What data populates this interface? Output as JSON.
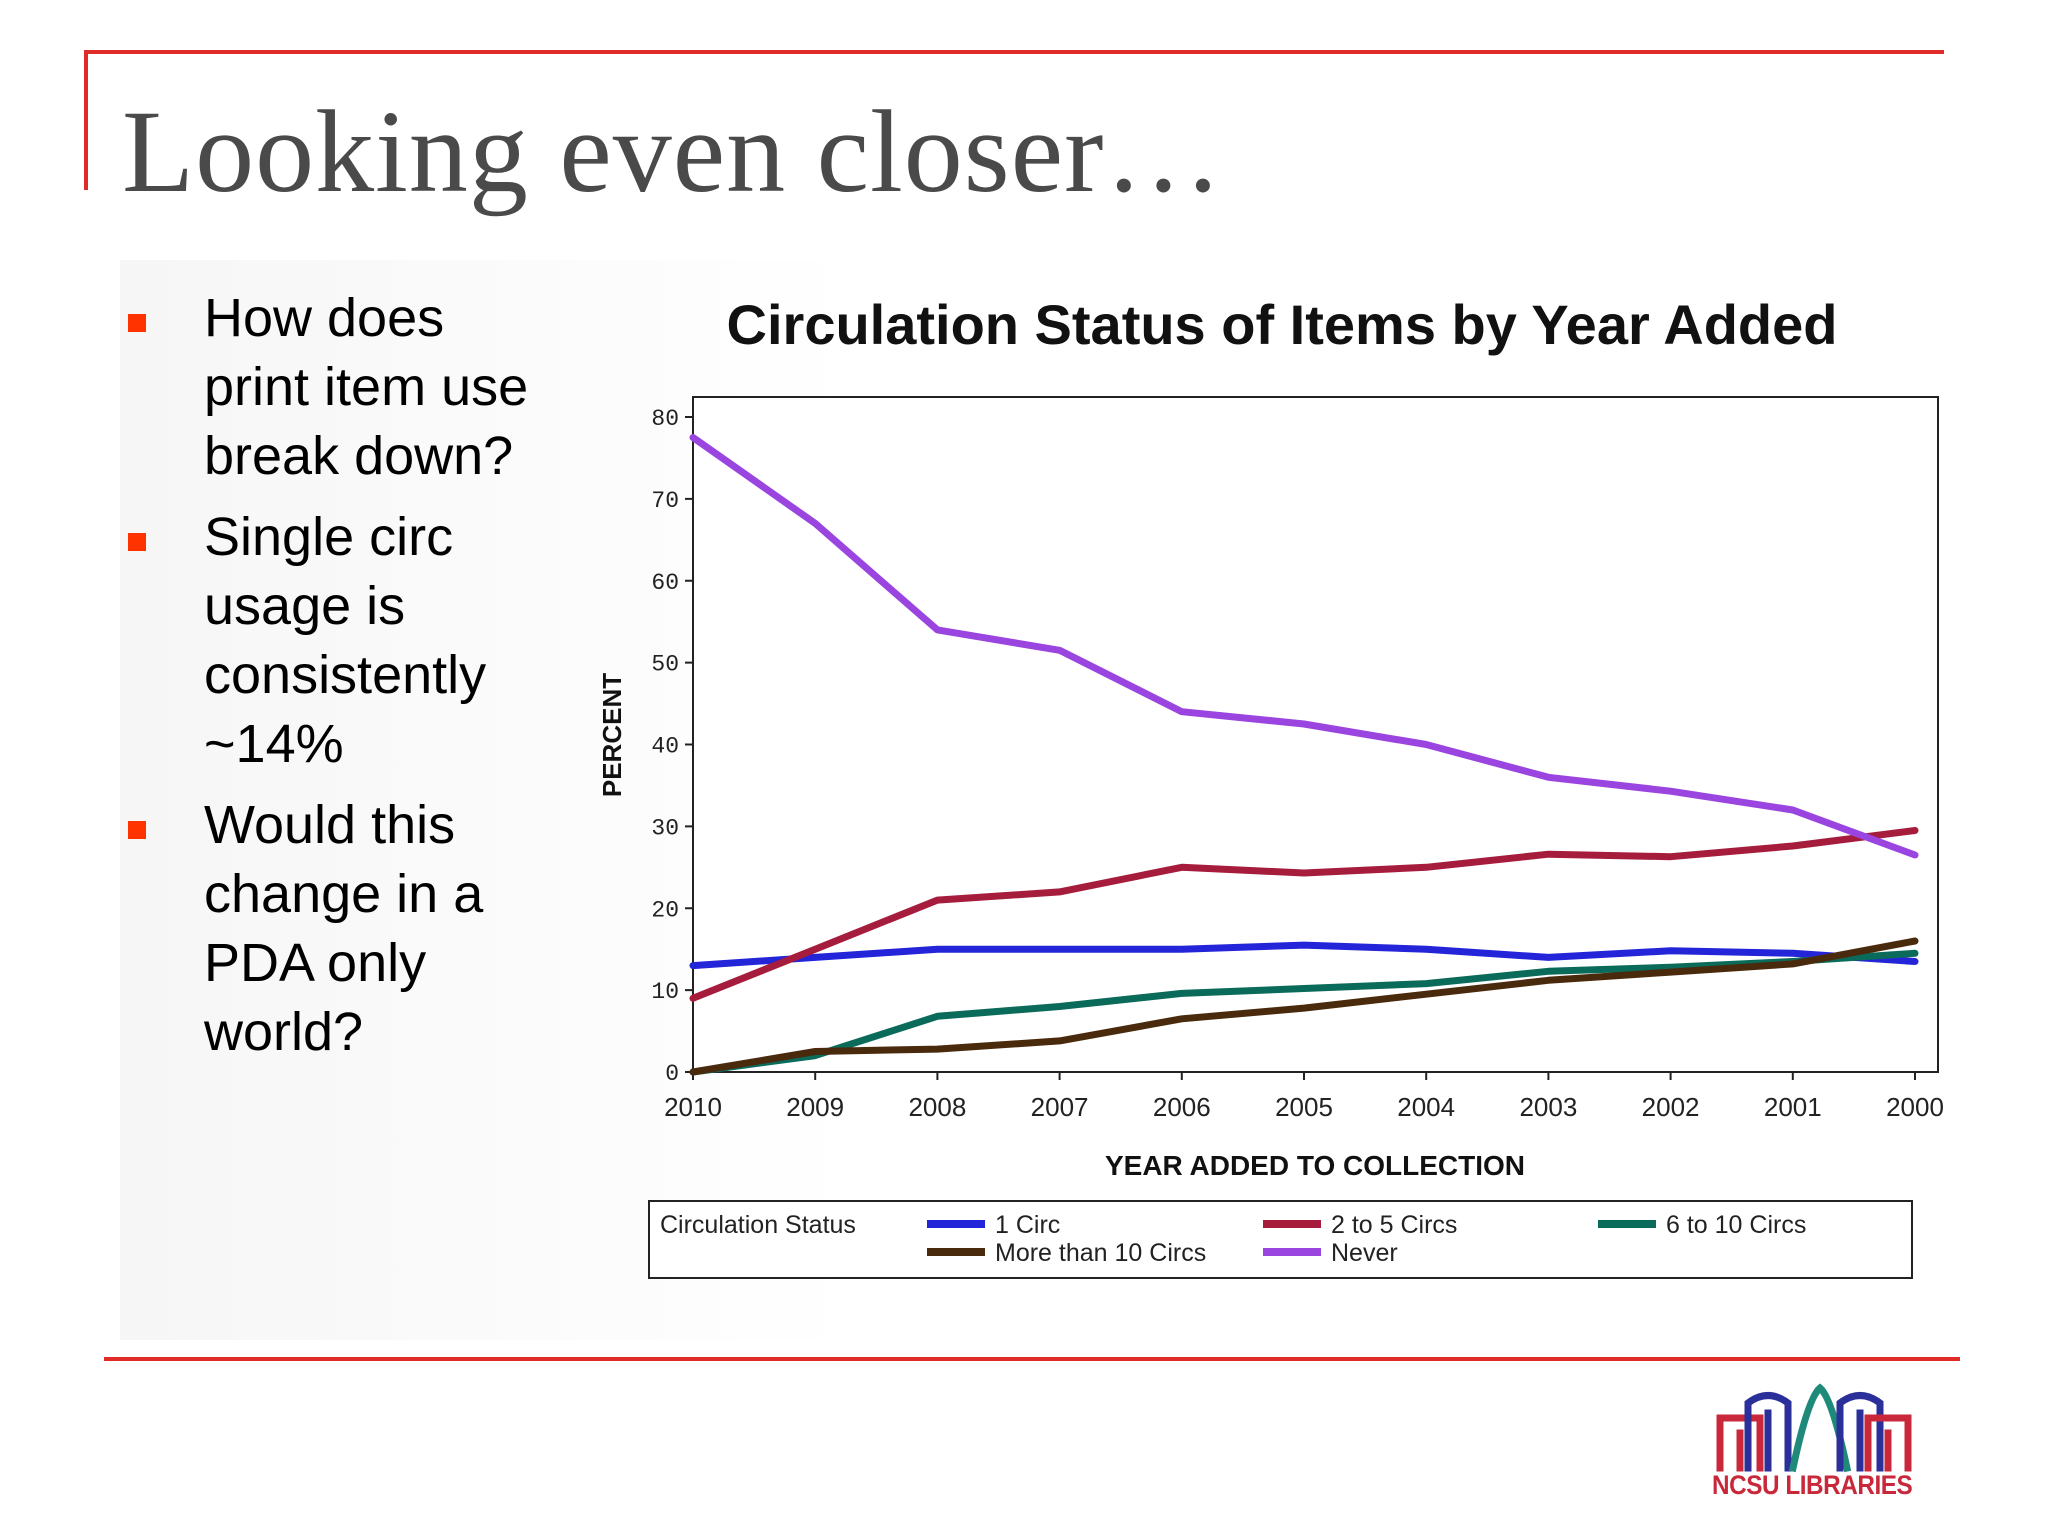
{
  "slide": {
    "title": "Looking even closer…",
    "bullets": [
      {
        "lines": [
          "How does",
          "print item use",
          "break down?"
        ]
      },
      {
        "lines": [
          "Single circ",
          "usage is",
          "consistently",
          "~14%"
        ]
      },
      {
        "lines": [
          "Would this",
          "change in a",
          "PDA only",
          "world?"
        ]
      }
    ],
    "accent_color": "#e02b2b",
    "bullet_color": "#ff3300"
  },
  "logo": {
    "text": "NCSU LIBRARIES",
    "colors": [
      "#c8283a",
      "#2a2f9a",
      "#1f8a7a"
    ]
  },
  "chart_data": {
    "type": "line",
    "title": "Circulation Status of Items by Year Added",
    "xlabel": "YEAR ADDED TO COLLECTION",
    "ylabel": "PERCENT",
    "categories": [
      "2010",
      "2009",
      "2008",
      "2007",
      "2006",
      "2005",
      "2004",
      "2003",
      "2002",
      "2001",
      "2000"
    ],
    "ylim": [
      0,
      80
    ],
    "yticks": [
      0,
      10,
      20,
      30,
      40,
      50,
      60,
      70,
      80
    ],
    "legend_title": "Circulation Status",
    "legend_position": "bottom",
    "series": [
      {
        "name": "1 Circ",
        "color": "#2424d8",
        "values": [
          13,
          14,
          15,
          15,
          15,
          15.5,
          15,
          14,
          14.8,
          14.5,
          13.5
        ]
      },
      {
        "name": "2 to 5 Circs",
        "color": "#a61c3c",
        "values": [
          9,
          15,
          21,
          22,
          25,
          24.3,
          25,
          26.6,
          26.3,
          27.6,
          29.5
        ]
      },
      {
        "name": "6 to 10 Circs",
        "color": "#0b6b5a",
        "values": [
          0,
          2,
          6.8,
          8,
          9.6,
          10.2,
          10.8,
          12.3,
          12.8,
          13.5,
          14.5
        ]
      },
      {
        "name": "More than 10 Circs",
        "color": "#4a2a0c",
        "values": [
          0,
          2.5,
          2.8,
          3.8,
          6.5,
          7.8,
          9.5,
          11.2,
          12.2,
          13.2,
          16
        ]
      },
      {
        "name": "Never",
        "color": "#9b45e0",
        "values": [
          77.5,
          67,
          54,
          51.5,
          44,
          42.5,
          40,
          36,
          34.3,
          32,
          26.5
        ]
      }
    ]
  }
}
